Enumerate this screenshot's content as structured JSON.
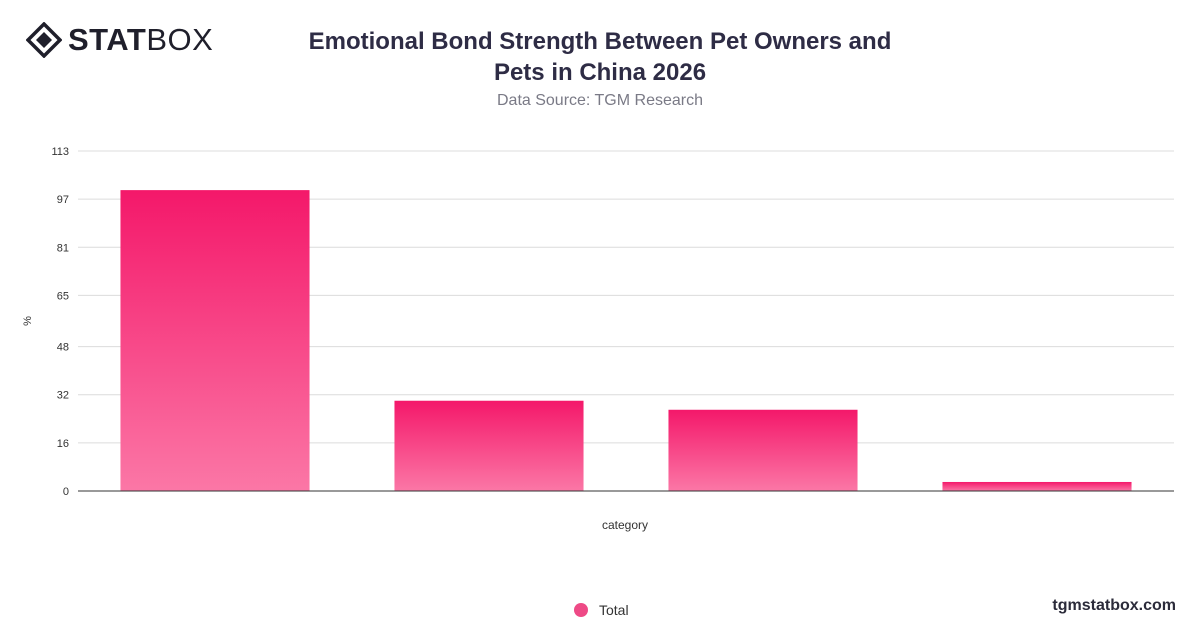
{
  "header": {
    "logo_bold": "STAT",
    "logo_light": "BOX",
    "title_line1": "Emotional Bond Strength Between Pet Owners and",
    "title_line2": "Pets in China 2026",
    "subtitle": "Data Source: TGM Research"
  },
  "footer": {
    "website": "tgmstatbox.com"
  },
  "colors": {
    "bar_top": "#f4186a",
    "bar_bottom": "#fb77a6",
    "legend_dot": "#ee4a86"
  },
  "chart_data": {
    "type": "bar",
    "title": "Emotional Bond Strength Between Pet Owners and Pets in China 2026",
    "subtitle": "Data Source: TGM Research",
    "xlabel": "category",
    "ylabel": "%",
    "categories": [
      "",
      "",
      "",
      ""
    ],
    "series": [
      {
        "name": "Total",
        "values": [
          100,
          30,
          27,
          3
        ]
      }
    ],
    "ylim": [
      0,
      113
    ],
    "yticks": [
      0,
      16,
      32,
      48,
      65,
      81,
      97,
      113
    ],
    "grid": true,
    "legend_position": "bottom-center"
  }
}
